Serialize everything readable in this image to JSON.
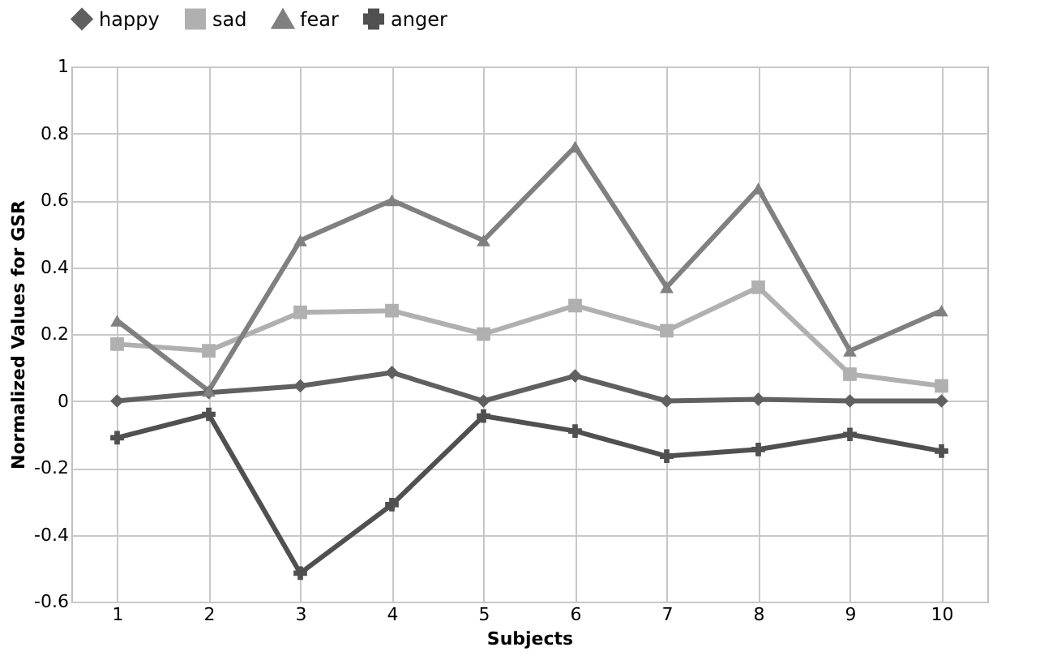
{
  "chart_data": {
    "type": "line",
    "xlabel": "Subjects",
    "ylabel": "Normalized Values for GSR",
    "categories": [
      "1",
      "2",
      "3",
      "4",
      "5",
      "6",
      "7",
      "8",
      "9",
      "10"
    ],
    "series": [
      {
        "name": "happy",
        "color": "#606060",
        "marker": "diamond",
        "values": [
          0,
          0.025,
          0.045,
          0.085,
          0,
          0.075,
          0,
          0.005,
          0,
          0
        ]
      },
      {
        "name": "sad",
        "color": "#b0b0b0",
        "marker": "square",
        "values": [
          0.17,
          0.15,
          0.265,
          0.27,
          0.2,
          0.285,
          0.21,
          0.34,
          0.08,
          0.045
        ]
      },
      {
        "name": "fear",
        "color": "#808080",
        "marker": "triangle",
        "values": [
          0.24,
          0.03,
          0.48,
          0.6,
          0.48,
          0.76,
          0.34,
          0.635,
          0.15,
          0.27
        ]
      },
      {
        "name": "anger",
        "color": "#505050",
        "marker": "cross",
        "values": [
          -0.11,
          -0.04,
          -0.515,
          -0.31,
          -0.045,
          -0.09,
          -0.165,
          -0.145,
          -0.1,
          -0.15
        ]
      }
    ],
    "ylim": [
      -0.6,
      1
    ],
    "yticks": [
      -0.6,
      -0.4,
      -0.2,
      0,
      0.2,
      0.4,
      0.6,
      0.8,
      1
    ],
    "grid": true,
    "legend": "top",
    "line_style": "solid"
  }
}
